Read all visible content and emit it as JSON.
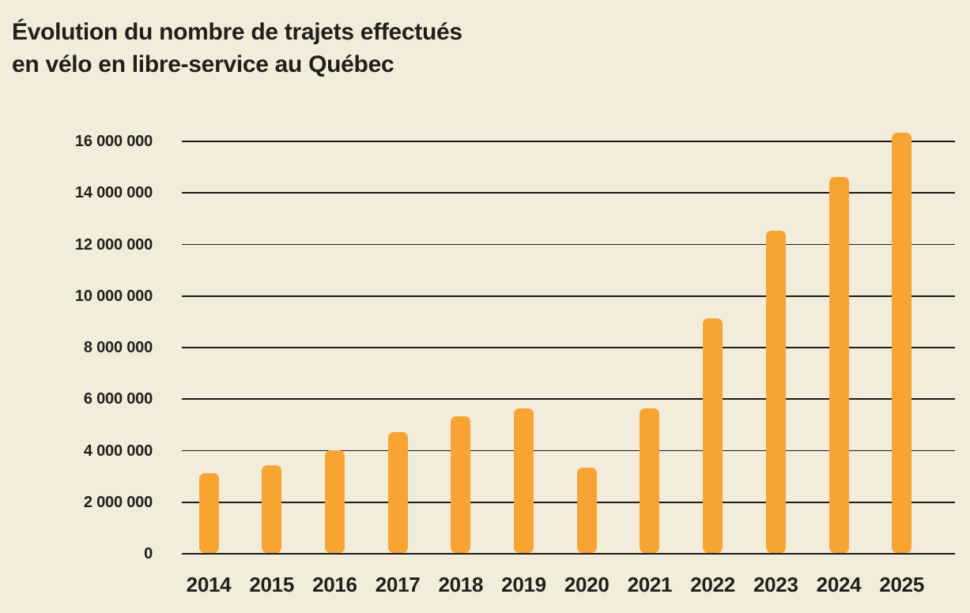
{
  "page": {
    "background_color": "#F2ECDB",
    "text_color": "#221E1A"
  },
  "title": {
    "line1": "Évolution du nombre de trajets effectués",
    "line2": "en vélo en libre-service au Québec"
  },
  "chart_data": {
    "type": "bar",
    "title": "Évolution du nombre de trajets effectués en vélo en libre-service au Québec",
    "categories": [
      "2014",
      "2015",
      "2016",
      "2017",
      "2018",
      "2019",
      "2020",
      "2021",
      "2022",
      "2023",
      "2024",
      "2025"
    ],
    "values": [
      3100000,
      3400000,
      4000000,
      4700000,
      5300000,
      5600000,
      3300000,
      5600000,
      9100000,
      12500000,
      14600000,
      16300000
    ],
    "xlabel": "",
    "ylabel": "",
    "ylim": [
      0,
      16000000
    ],
    "ytick_step": 2000000,
    "yticks": [
      {
        "value": 0,
        "label": "0"
      },
      {
        "value": 2000000,
        "label": "2 000 000"
      },
      {
        "value": 4000000,
        "label": "4 000 000"
      },
      {
        "value": 6000000,
        "label": "6 000 000"
      },
      {
        "value": 8000000,
        "label": "8 000 000"
      },
      {
        "value": 10000000,
        "label": "10 000 000"
      },
      {
        "value": 12000000,
        "label": "12 000 000"
      },
      {
        "value": 14000000,
        "label": "14 000 000"
      },
      {
        "value": 16000000,
        "label": "16 000 000"
      }
    ],
    "grid": true,
    "legend": false,
    "bar_color": "#F7A433",
    "grid_color": "#1E1A15",
    "label_color": "#221E1A"
  }
}
